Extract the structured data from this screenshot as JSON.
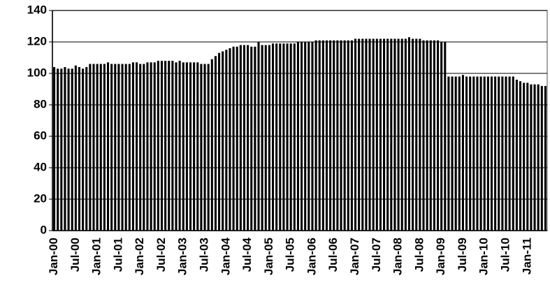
{
  "chart_data": {
    "type": "bar",
    "categories": [
      "Jan-00",
      null,
      null,
      null,
      null,
      null,
      "Jul-00",
      null,
      null,
      null,
      null,
      null,
      "Jan-01",
      null,
      null,
      null,
      null,
      null,
      "Jul-01",
      null,
      null,
      null,
      null,
      null,
      "Jan-02",
      null,
      null,
      null,
      null,
      null,
      "Jul-02",
      null,
      null,
      null,
      null,
      null,
      "Jan-03",
      null,
      null,
      null,
      null,
      null,
      "Jul-03",
      null,
      null,
      null,
      null,
      null,
      "Jan-04",
      null,
      null,
      null,
      null,
      null,
      "Jul-04",
      null,
      null,
      null,
      null,
      null,
      "Jan-05",
      null,
      null,
      null,
      null,
      null,
      "Jul-05",
      null,
      null,
      null,
      null,
      null,
      "Jan-06",
      null,
      null,
      null,
      null,
      null,
      "Jul-06",
      null,
      null,
      null,
      null,
      null,
      "Jan-07",
      null,
      null,
      null,
      null,
      null,
      "Jul-07",
      null,
      null,
      null,
      null,
      null,
      "Jan-08",
      null,
      null,
      null,
      null,
      null,
      "Jul-08",
      null,
      null,
      null,
      null,
      null,
      "Jan-09",
      null,
      null,
      null,
      null,
      null,
      "Jul-09",
      null,
      null,
      null,
      null,
      null,
      "Jan-10",
      null,
      null,
      null,
      null,
      null,
      "Jul-10",
      null,
      null,
      null,
      null,
      null,
      "Jan-11",
      null,
      null,
      null,
      null,
      null
    ],
    "values": [
      104,
      103,
      103,
      104,
      103,
      103,
      105,
      104,
      103,
      104,
      106,
      106,
      106,
      106,
      106,
      107,
      106,
      106,
      106,
      106,
      106,
      106,
      107,
      107,
      106,
      106,
      107,
      107,
      107,
      108,
      108,
      108,
      108,
      108,
      107,
      108,
      107,
      107,
      107,
      107,
      107,
      106,
      106,
      106,
      109,
      111,
      113,
      114,
      115,
      116,
      117,
      117,
      118,
      118,
      118,
      117,
      117,
      120,
      118,
      118,
      118,
      119,
      119,
      119,
      119,
      119,
      119,
      119,
      120,
      120,
      120,
      120,
      120,
      121,
      121,
      121,
      121,
      121,
      121,
      121,
      121,
      121,
      121,
      121,
      122,
      122,
      122,
      122,
      122,
      122,
      122,
      122,
      122,
      122,
      122,
      122,
      122,
      122,
      122,
      123,
      122,
      122,
      122,
      121,
      121,
      121,
      121,
      121,
      120,
      120,
      98,
      98,
      98,
      98,
      99,
      98,
      98,
      98,
      98,
      98,
      98,
      98,
      98,
      98,
      98,
      98,
      98,
      98,
      98,
      96,
      95,
      94,
      94,
      93,
      93,
      93,
      92,
      92
    ],
    "color": "#000000",
    "ylim": [
      0,
      140
    ],
    "yticks": [
      0,
      20,
      40,
      60,
      80,
      100,
      120,
      140
    ],
    "grid": true
  }
}
